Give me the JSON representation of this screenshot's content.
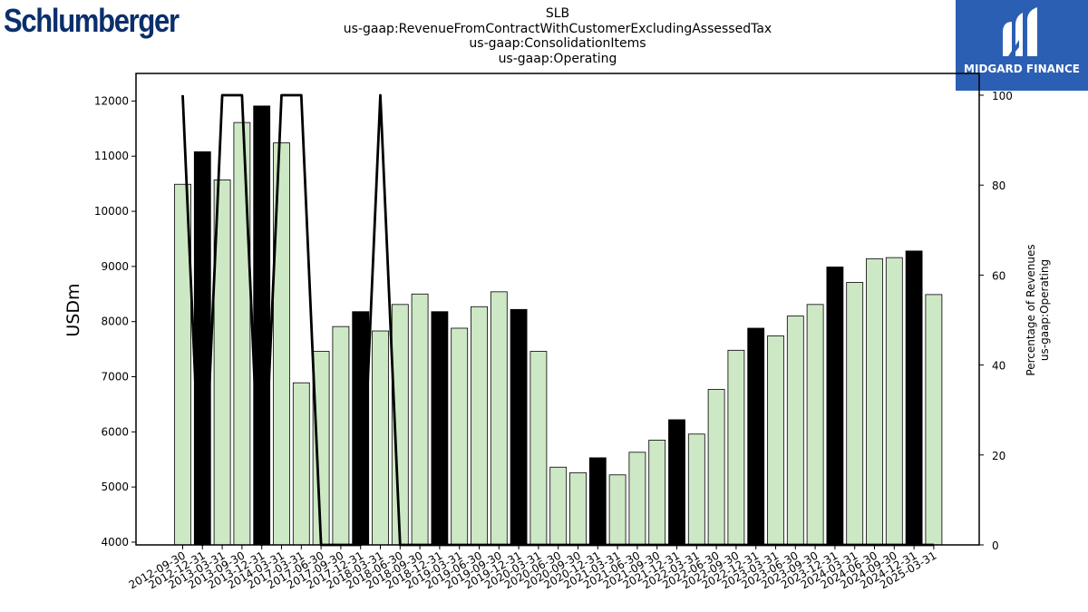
{
  "company_logo": {
    "text": "Schlumberger"
  },
  "brand_logo": {
    "text": "MIDGARD FINANCE",
    "icon": "midgard-m-icon"
  },
  "chart_data": {
    "type": "bar",
    "title": [
      "SLB",
      "us-gaap:RevenueFromContractWithCustomerExcludingAssessedTax",
      "us-gaap:ConsolidationItems",
      "us-gaap:Operating"
    ],
    "ylabel": "USDm",
    "y2label": [
      "Percentage of Revenues",
      "us-gaap:Operating"
    ],
    "ylim": [
      3950,
      12500
    ],
    "y2lim": [
      0,
      100
    ],
    "yticks": [
      4000,
      5000,
      6000,
      7000,
      8000,
      9000,
      10000,
      11000,
      12000
    ],
    "y2ticks": [
      0,
      20,
      40,
      60,
      80,
      100
    ],
    "colors": {
      "default_bar": "#cde8c5",
      "highlight_bar": "#000000",
      "line": "#000000"
    },
    "categories": [
      "2012-09-30",
      "2012-12-31",
      "2013-03-31",
      "2013-09-30",
      "2013-12-31",
      "2014-03-31",
      "2017-03-31",
      "2017-06-30",
      "2017-09-30",
      "2017-12-31",
      "2018-03-31",
      "2018-06-30",
      "2018-09-30",
      "2018-12-31",
      "2019-03-31",
      "2019-06-30",
      "2019-09-30",
      "2019-12-31",
      "2020-03-31",
      "2020-06-30",
      "2020-09-30",
      "2020-12-31",
      "2021-03-31",
      "2021-06-30",
      "2021-09-30",
      "2021-12-31",
      "2022-03-31",
      "2022-06-30",
      "2022-09-30",
      "2022-12-31",
      "2023-03-31",
      "2023-06-30",
      "2023-09-30",
      "2023-12-31",
      "2024-03-31",
      "2024-06-30",
      "2024-09-30",
      "2024-12-31",
      "2025-03-31"
    ],
    "values": [
      10490,
      11080,
      10570,
      11610,
      11910,
      11240,
      6890,
      7460,
      7910,
      8180,
      7830,
      8310,
      8500,
      8180,
      7880,
      8270,
      8540,
      8220,
      7460,
      5360,
      5260,
      5530,
      5220,
      5630,
      5850,
      6220,
      5960,
      6770,
      7480,
      7880,
      7740,
      8100,
      8310,
      8990,
      8710,
      9140,
      9160,
      9280,
      8490
    ],
    "highlight": [
      false,
      true,
      false,
      false,
      true,
      false,
      false,
      false,
      false,
      true,
      false,
      false,
      false,
      true,
      false,
      false,
      false,
      true,
      false,
      false,
      false,
      true,
      false,
      false,
      false,
      true,
      false,
      false,
      false,
      true,
      false,
      false,
      false,
      true,
      false,
      false,
      false,
      true,
      false
    ],
    "line_series": {
      "name": "us-gaap:Operating",
      "values": [
        100,
        0,
        100,
        100,
        0,
        100,
        100,
        0,
        0,
        0,
        100,
        0,
        0,
        0,
        0,
        0,
        0,
        0,
        0,
        0,
        0,
        0,
        0,
        0,
        0,
        0,
        0,
        0,
        0,
        0,
        0,
        0,
        0,
        0,
        0,
        0,
        0,
        0,
        0
      ]
    }
  }
}
